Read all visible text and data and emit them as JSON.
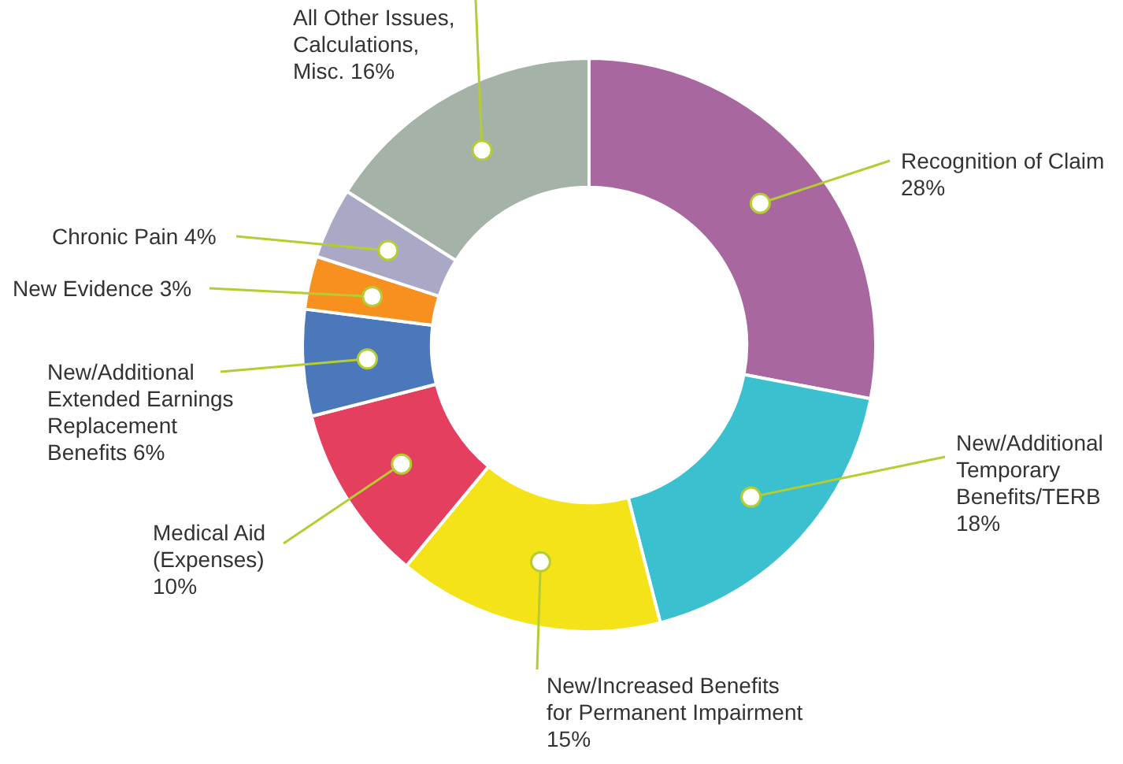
{
  "chart_data": {
    "type": "donut",
    "categories": [
      "Recognition of Claim",
      "New/Additional Temporary Benefits/TERB",
      "New/Increased Benefits for Permanent Impairment",
      "Medical Aid (Expenses)",
      "New/Additional Extended Earnings Replacement Benefits",
      "New Evidence",
      "Chronic Pain",
      "All Other Issues, Calculations, Misc."
    ],
    "values": [
      28,
      18,
      15,
      10,
      6,
      3,
      4,
      16
    ],
    "value_labels": [
      "28%",
      "18%",
      "15%",
      "10%",
      "6%",
      "3%",
      "4%",
      "16%"
    ],
    "colors": [
      "#a8679f",
      "#3bc0cf",
      "#f5e319",
      "#e43f5e",
      "#4a78bb",
      "#f7901e",
      "#aaa9c5",
      "#a5b2a8"
    ],
    "legend": false
  }
}
